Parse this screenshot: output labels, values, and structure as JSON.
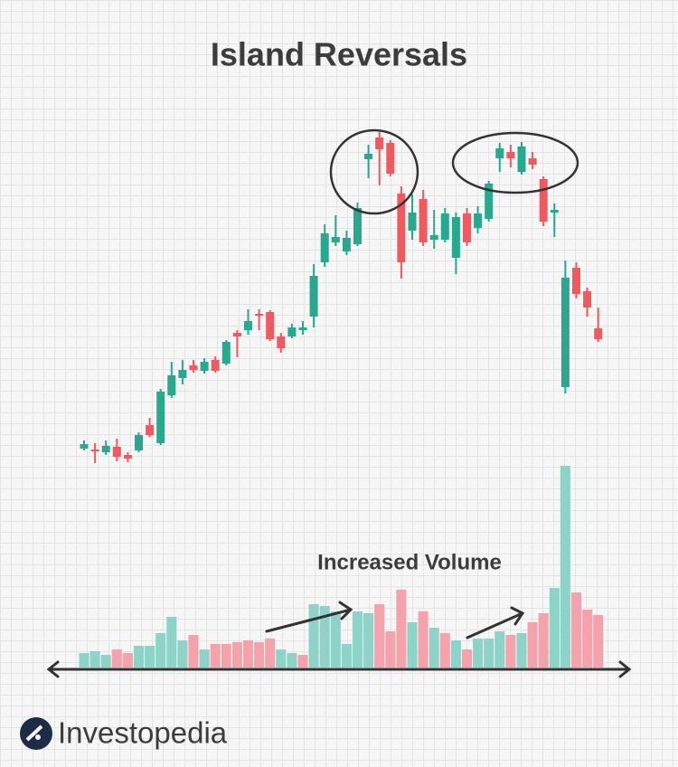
{
  "chart_data": {
    "type": "candlestick",
    "title": "Island Reversals",
    "annotation": "Increased Volume",
    "brand": "Investopedia",
    "open": [
      24,
      23,
      20,
      26,
      17,
      22,
      50,
      30,
      83,
      102,
      116,
      110,
      122,
      118,
      152,
      155,
      173,
      175,
      148,
      148,
      155,
      170,
      230,
      252,
      242,
      250,
      344,
      368,
      362,
      306,
      265,
      300,
      255,
      255,
      235,
      284,
      268,
      278,
      345,
      352,
      330,
      345,
      322,
      285,
      92,
      224,
      198,
      157
    ],
    "high": [
      33,
      30,
      33,
      35,
      20,
      42,
      58,
      90,
      120,
      122,
      122,
      124,
      126,
      144,
      155,
      178,
      178,
      177,
      152,
      162,
      165,
      228,
      272,
      282,
      265,
      296,
      360,
      374,
      365,
      314,
      305,
      310,
      288,
      290,
      285,
      290,
      292,
      320,
      362,
      360,
      363,
      352,
      325,
      295,
      232,
      230,
      202,
      180
    ],
    "low": [
      22,
      8,
      17,
      10,
      9,
      20,
      37,
      28,
      80,
      95,
      108,
      107,
      108,
      116,
      125,
      150,
      155,
      143,
      130,
      146,
      150,
      158,
      225,
      248,
      238,
      248,
      323,
      315,
      325,
      212,
      255,
      248,
      245,
      252,
      217,
      248,
      262,
      275,
      330,
      335,
      327,
      333,
      270,
      258,
      85,
      190,
      170,
      142
    ],
    "close": [
      29,
      21,
      27,
      15,
      13,
      39,
      39,
      87,
      105,
      111,
      111,
      120,
      110,
      142,
      148,
      165,
      171,
      145,
      135,
      158,
      158,
      215,
      262,
      258,
      257,
      290,
      350,
      355,
      328,
      230,
      285,
      252,
      260,
      284,
      280,
      252,
      284,
      317,
      356,
      345,
      358,
      338,
      275,
      288,
      213,
      195,
      180,
      145
    ],
    "volume": [
      16,
      18,
      14,
      20,
      16,
      24,
      24,
      38,
      56,
      30,
      36,
      20,
      26,
      26,
      28,
      30,
      28,
      32,
      20,
      16,
      14,
      70,
      68,
      62,
      26,
      62,
      60,
      70,
      40,
      86,
      50,
      62,
      44,
      38,
      30,
      20,
      32,
      32,
      40,
      36,
      38,
      50,
      60,
      88,
      223,
      83,
      64,
      58
    ],
    "volume_colors": [
      "#8dd3c8",
      "#8dd3c8",
      "#8dd3c8",
      "#f4a3ad",
      "#f4a3ad",
      "#8dd3c8",
      "#8dd3c8",
      "#8dd3c8",
      "#8dd3c8",
      "#8dd3c8",
      "#f4a3ad",
      "#8dd3c8",
      "#f4a3ad",
      "#f4a3ad",
      "#f4a3ad",
      "#f4a3ad",
      "#f4a3ad",
      "#f4a3ad",
      "#8dd3c8",
      "#8dd3c8",
      "#f4a3ad",
      "#8dd3c8",
      "#8dd3c8",
      "#8dd3c8",
      "#8dd3c8",
      "#8dd3c8",
      "#8dd3c8",
      "#f4a3ad",
      "#f4a3ad",
      "#f4a3ad",
      "#8dd3c8",
      "#f4a3ad",
      "#8dd3c8",
      "#f4a3ad",
      "#8dd3c8",
      "#f4a3ad",
      "#8dd3c8",
      "#8dd3c8",
      "#8dd3c8",
      "#f4a3ad",
      "#8dd3c8",
      "#f4a3ad",
      "#f4a3ad",
      "#8dd3c8",
      "#8dd3c8",
      "#f4a3ad",
      "#f4a3ad",
      "#f4a3ad"
    ],
    "up_color": "#26a98f",
    "down_color": "#ef5a60",
    "ylim": [
      0,
      380
    ],
    "volume_ylim": [
      0,
      230
    ]
  }
}
